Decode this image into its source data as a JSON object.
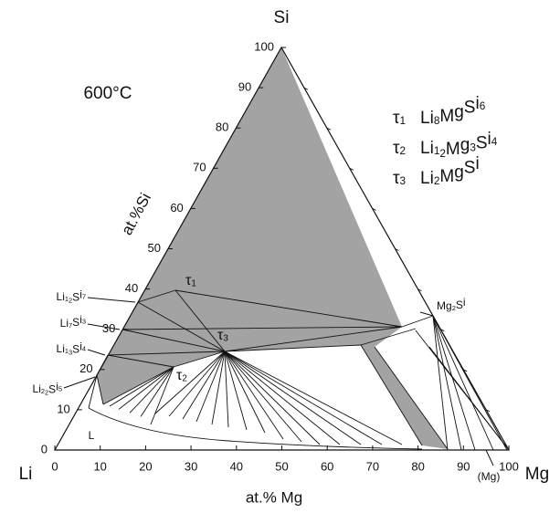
{
  "title": "600°C",
  "vertices": {
    "top": "Si",
    "left": "Li",
    "right": "Mg"
  },
  "bottom_axis": {
    "label": "at.% Mg",
    "ticks": [
      0,
      10,
      20,
      30,
      40,
      50,
      60,
      70,
      80,
      90,
      100
    ]
  },
  "left_axis": {
    "label": "at.%Si",
    "ticks": [
      0,
      10,
      20,
      30,
      40,
      50,
      60,
      70,
      80,
      90,
      100
    ]
  },
  "legend": [
    {
      "symbol": "τ1",
      "formula": "Li8MgSi6"
    },
    {
      "symbol": "τ2",
      "formula": "Li12Mg3Si4"
    },
    {
      "symbol": "τ3",
      "formula": "Li2MgSi"
    }
  ],
  "phase_labels": [
    "Li12Si7",
    "Li7Si3",
    "Li13Si4",
    "Li22Si5",
    "Mg2Si",
    "τ1",
    "τ2",
    "τ3",
    "L",
    "(Mg)"
  ]
}
